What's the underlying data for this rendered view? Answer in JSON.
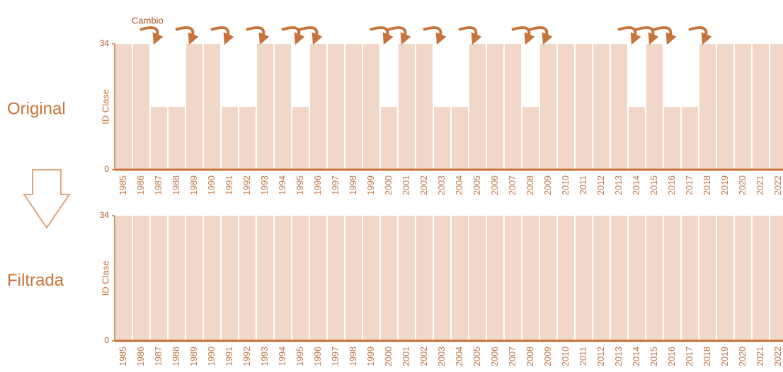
{
  "chart_data": [
    {
      "type": "bar",
      "title": "Original",
      "y_label": "ID Clase",
      "annotation": "Cambio",
      "categories": [
        "1985",
        "1986",
        "1987",
        "1988",
        "1989",
        "1990",
        "1991",
        "1992",
        "1993",
        "1994",
        "1995",
        "1996",
        "1997",
        "1998",
        "1999",
        "2000",
        "2001",
        "2002",
        "2003",
        "2004",
        "2005",
        "2006",
        "2007",
        "2008",
        "2009",
        "2010",
        "2011",
        "2012",
        "2013",
        "2014",
        "2015",
        "2016",
        "2017",
        "2018",
        "2019",
        "2020",
        "2021",
        "2022"
      ],
      "values": [
        34,
        34,
        17,
        17,
        34,
        34,
        17,
        17,
        34,
        34,
        17,
        34,
        34,
        34,
        34,
        17,
        34,
        34,
        17,
        17,
        34,
        34,
        34,
        17,
        34,
        34,
        34,
        34,
        34,
        17,
        34,
        17,
        17,
        34,
        34,
        34,
        34,
        34
      ],
      "color": "#f0d7c7",
      "axis_color": "#c8733a",
      "ylim": [
        0,
        34
      ],
      "yticks": [
        0,
        34
      ]
    },
    {
      "type": "bar",
      "title": "Filtrada",
      "y_label": "ID Clase",
      "categories": [
        "1985",
        "1986",
        "1987",
        "1988",
        "1989",
        "1990",
        "1991",
        "1992",
        "1993",
        "1994",
        "1995",
        "1996",
        "1997",
        "1998",
        "1999",
        "2000",
        "2001",
        "2002",
        "2003",
        "2004",
        "2005",
        "2006",
        "2007",
        "2008",
        "2009",
        "2010",
        "2011",
        "2012",
        "2013",
        "2014",
        "2015",
        "2016",
        "2017",
        "2018",
        "2019",
        "2020",
        "2021",
        "2022"
      ],
      "values": [
        34,
        34,
        34,
        34,
        34,
        34,
        34,
        34,
        34,
        34,
        34,
        34,
        34,
        34,
        34,
        34,
        34,
        34,
        34,
        34,
        34,
        34,
        34,
        34,
        34,
        34,
        34,
        34,
        34,
        34,
        34,
        34,
        34,
        34,
        34,
        34,
        34,
        34
      ],
      "color": "#f0d7c7",
      "axis_color": "#c8733a",
      "ylim": [
        0,
        34
      ],
      "yticks": [
        0,
        34
      ]
    }
  ]
}
